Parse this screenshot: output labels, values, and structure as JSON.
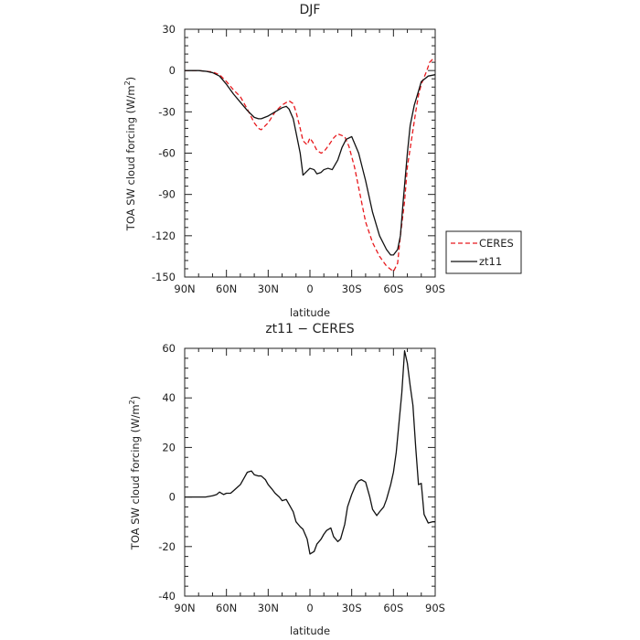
{
  "chart_data": [
    {
      "type": "line",
      "title": "DJF",
      "xlabel": "latitude",
      "ylabel": "TOA SW cloud forcing (W/m",
      "ylabel_sup": "2",
      "ylabel_tail": ")",
      "xlim": [
        90,
        -90
      ],
      "ylim": [
        -150,
        30
      ],
      "x_ticks": [
        90,
        60,
        30,
        0,
        -30,
        -60,
        -90
      ],
      "x_tick_labels": [
        "90N",
        "60N",
        "30N",
        "0",
        "30S",
        "60S",
        "90S"
      ],
      "y_ticks": [
        30,
        0,
        -30,
        -60,
        -90,
        -120,
        -150
      ],
      "y_tick_labels": [
        "30",
        "0",
        "-30",
        "-60",
        "-90",
        "-120",
        "-150"
      ],
      "grid": false,
      "legend_position": "right-outside",
      "series": [
        {
          "name": "CERES",
          "color": "#e8191d",
          "dash": "dashed",
          "x": [
            90,
            80,
            75,
            70,
            65,
            60,
            55,
            50,
            45,
            40,
            37,
            35,
            30,
            25,
            20,
            15,
            12,
            10,
            7,
            5,
            2,
            0,
            -2,
            -5,
            -8,
            -10,
            -13,
            -17,
            -20,
            -25,
            -28,
            -32,
            -36,
            -40,
            -45,
            -50,
            -55,
            -60,
            -63,
            -65,
            -68,
            -70,
            -73,
            -76,
            -78,
            -80,
            -82,
            -84,
            -86,
            -88,
            -90
          ],
          "y": [
            0,
            0,
            -0.5,
            -1,
            -3,
            -8,
            -14,
            -19,
            -28,
            -38,
            -42,
            -43,
            -38,
            -30,
            -25,
            -22,
            -24,
            -30,
            -42,
            -51,
            -54,
            -49,
            -52,
            -58,
            -60,
            -59,
            -55,
            -49,
            -46,
            -48,
            -55,
            -70,
            -90,
            -110,
            -125,
            -135,
            -142,
            -146,
            -140,
            -120,
            -95,
            -70,
            -50,
            -30,
            -18,
            -10,
            -5,
            0,
            6,
            8,
            7
          ]
        },
        {
          "name": "zt11",
          "color": "#111111",
          "dash": "solid",
          "x": [
            90,
            80,
            75,
            70,
            65,
            60,
            55,
            50,
            45,
            40,
            37,
            35,
            30,
            25,
            20,
            17,
            15,
            12,
            10,
            7,
            5,
            3,
            0,
            -3,
            -5,
            -8,
            -10,
            -13,
            -16,
            -20,
            -23,
            -26,
            -30,
            -35,
            -40,
            -45,
            -50,
            -55,
            -58,
            -60,
            -63,
            -65,
            -67,
            -70,
            -72,
            -75,
            -78,
            -80,
            -85,
            -90
          ],
          "y": [
            0,
            0,
            -0.5,
            -1.5,
            -4,
            -10,
            -17,
            -23,
            -29,
            -34,
            -35,
            -35,
            -33,
            -30,
            -27,
            -26,
            -28,
            -35,
            -45,
            -60,
            -76,
            -74,
            -71,
            -72,
            -75,
            -74,
            -72,
            -71,
            -72,
            -65,
            -56,
            -50,
            -48,
            -60,
            -80,
            -103,
            -120,
            -130,
            -134,
            -134,
            -130,
            -120,
            -95,
            -60,
            -40,
            -25,
            -15,
            -8,
            -4,
            -3
          ]
        }
      ],
      "legend": [
        "CERES",
        "zt11"
      ]
    },
    {
      "type": "line",
      "title": "zt11 − CERES",
      "xlabel": "latitude",
      "ylabel": "TOA SW cloud forcing (W/m",
      "ylabel_sup": "2",
      "ylabel_tail": ")",
      "xlim": [
        90,
        -90
      ],
      "ylim": [
        -40,
        60
      ],
      "x_ticks": [
        90,
        60,
        30,
        0,
        -30,
        -60,
        -90
      ],
      "x_tick_labels": [
        "90N",
        "60N",
        "30N",
        "0",
        "30S",
        "60S",
        "90S"
      ],
      "y_ticks": [
        60,
        40,
        20,
        0,
        -20,
        -40
      ],
      "y_tick_labels": [
        "60",
        "40",
        "20",
        "0",
        "-20",
        "-40"
      ],
      "grid": false,
      "series": [
        {
          "color": "#111111",
          "dash": "solid",
          "x": [
            90,
            80,
            75,
            70,
            67,
            65,
            62,
            60,
            57,
            55,
            52,
            50,
            47,
            45,
            42,
            40,
            37,
            35,
            32,
            30,
            27,
            25,
            22,
            20,
            17,
            15,
            12,
            10,
            7,
            5,
            2,
            0,
            -3,
            -5,
            -8,
            -10,
            -12,
            -15,
            -17,
            -20,
            -22,
            -25,
            -27,
            -30,
            -33,
            -35,
            -37,
            -40,
            -43,
            -45,
            -48,
            -50,
            -53,
            -55,
            -58,
            -60,
            -62,
            -64,
            -66,
            -68,
            -70,
            -72,
            -74,
            -76,
            -78,
            -80,
            -82,
            -85,
            -88,
            -90
          ],
          "y": [
            0,
            0,
            0,
            0.5,
            1,
            2,
            1,
            1.5,
            1.5,
            2.5,
            4,
            5,
            8,
            10,
            10.5,
            9,
            8.5,
            8.5,
            7,
            5,
            3,
            1.5,
            0,
            -1.5,
            -1,
            -3,
            -6,
            -10,
            -12,
            -13,
            -17,
            -23,
            -22,
            -19,
            -17,
            -15,
            -13.5,
            -12.5,
            -16,
            -18,
            -17,
            -11,
            -4,
            1,
            5,
            6.5,
            7,
            6,
            0,
            -5,
            -7.5,
            -6,
            -4,
            -1,
            5,
            10,
            18,
            30,
            42,
            59,
            54,
            45,
            37,
            20,
            5,
            5.5,
            -7,
            -10.5,
            -10,
            -10
          ]
        }
      ]
    }
  ]
}
